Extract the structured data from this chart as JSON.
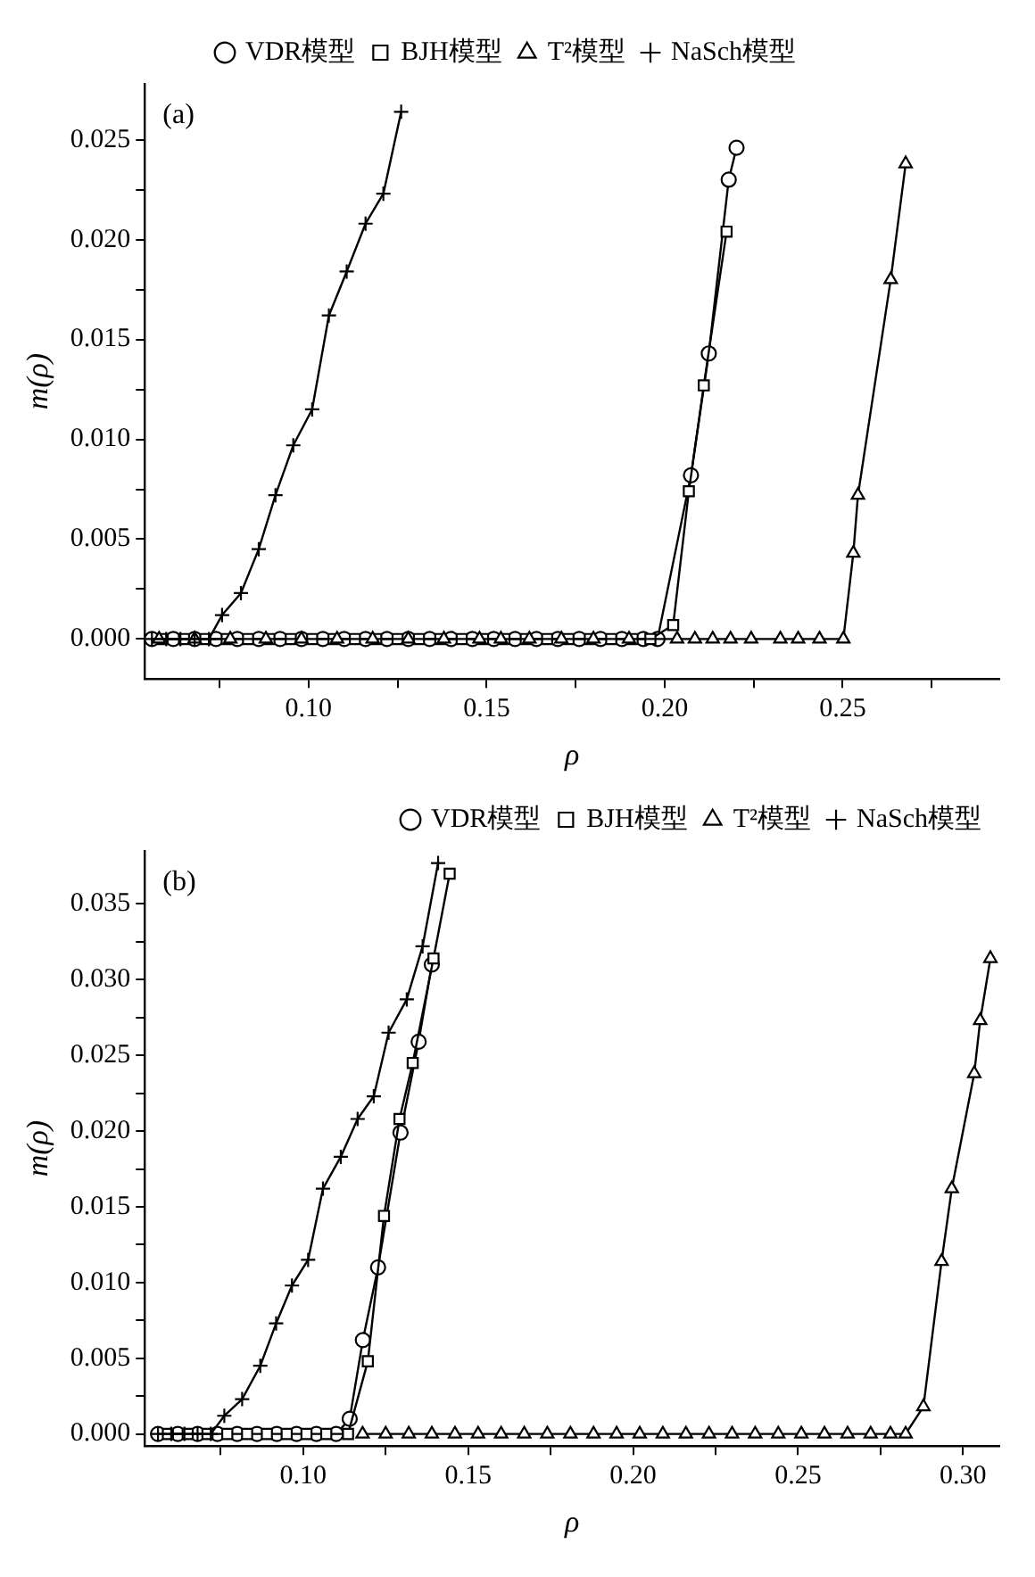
{
  "chart_data": [
    {
      "type": "line",
      "xlabel": "ρ",
      "ylabel": "m(ρ)",
      "annotations": [
        "(a)"
      ],
      "legend": "top",
      "xlim": [
        0.054,
        0.294
      ],
      "ylim": [
        -0.002,
        0.0278
      ],
      "xticks": [
        {
          "value": 0.075,
          "label": null
        },
        {
          "value": 0.1,
          "label": "0.10"
        },
        {
          "value": 0.125,
          "label": null
        },
        {
          "value": 0.15,
          "label": "0.15"
        },
        {
          "value": 0.175,
          "label": null
        },
        {
          "value": 0.2,
          "label": "0.20"
        },
        {
          "value": 0.225,
          "label": null
        },
        {
          "value": 0.25,
          "label": "0.25"
        },
        {
          "value": 0.275,
          "label": null
        }
      ],
      "yticks": [
        {
          "value": 0,
          "label": "0.000"
        },
        {
          "value": 0.0025,
          "label": null
        },
        {
          "value": 0.005,
          "label": "0.005"
        },
        {
          "value": 0.0075,
          "label": null
        },
        {
          "value": 0.01,
          "label": "0.010"
        },
        {
          "value": 0.0125,
          "label": null
        },
        {
          "value": 0.015,
          "label": "0.015"
        },
        {
          "value": 0.0175,
          "label": null
        },
        {
          "value": 0.02,
          "label": "0.020"
        },
        {
          "value": 0.0225,
          "label": null
        },
        {
          "value": 0.025,
          "label": "0.025"
        }
      ],
      "series": [
        {
          "name": "VDR模型",
          "color": "#000000",
          "marker": "circle",
          "x": [
            0.056,
            0.062,
            0.068,
            0.074,
            0.08,
            0.086,
            0.092,
            0.098,
            0.104,
            0.11,
            0.116,
            0.122,
            0.128,
            0.134,
            0.14,
            0.146,
            0.152,
            0.158,
            0.164,
            0.17,
            0.176,
            0.182,
            0.188,
            0.194,
            0.198,
            0.2074,
            0.2124,
            0.218,
            0.2202
          ],
          "values": [
            0,
            0,
            0,
            0,
            0,
            0,
            0,
            0,
            0,
            0,
            0,
            0,
            0,
            0,
            0,
            0,
            0,
            0,
            0,
            0,
            0,
            0,
            0,
            0,
            0,
            0.0082,
            0.0143,
            0.023,
            0.0246
          ]
        },
        {
          "name": "BJH模型",
          "color": "#000000",
          "marker": "square",
          "x": [
            0.059,
            0.065,
            0.071,
            0.077,
            0.083,
            0.089,
            0.095,
            0.101,
            0.107,
            0.113,
            0.119,
            0.125,
            0.131,
            0.137,
            0.143,
            0.149,
            0.155,
            0.161,
            0.167,
            0.173,
            0.179,
            0.185,
            0.191,
            0.196,
            0.2024,
            0.2068,
            0.211,
            0.2174
          ],
          "values": [
            0,
            0,
            0,
            0,
            0,
            0,
            0,
            0,
            0,
            0,
            0,
            0,
            0,
            0,
            0,
            0,
            0,
            0,
            0,
            0,
            0,
            0,
            0,
            0,
            0.0007,
            0.0074,
            0.0127,
            0.0204
          ]
        },
        {
          "name": "T²模型",
          "color": "#000000",
          "marker": "triangle",
          "x": [
            0.058,
            0.068,
            0.078,
            0.088,
            0.098,
            0.108,
            0.118,
            0.128,
            0.138,
            0.148,
            0.154,
            0.162,
            0.171,
            0.18,
            0.19,
            0.2035,
            0.2085,
            0.2135,
            0.2185,
            0.2243,
            0.2325,
            0.2375,
            0.2435,
            0.2502,
            0.253,
            0.2543,
            0.2635,
            0.2677
          ],
          "values": [
            0,
            0,
            0,
            0,
            0,
            0,
            0,
            0,
            0,
            0,
            0,
            0,
            0,
            0,
            0,
            0,
            0,
            0,
            0,
            0,
            0,
            0,
            0,
            0,
            0.0043,
            0.0072,
            0.018,
            0.0238
          ]
        },
        {
          "name": "NaSch模型",
          "color": "#000000",
          "marker": "cross",
          "x": [
            0.056,
            0.06,
            0.064,
            0.068,
            0.072,
            0.0757,
            0.081,
            0.086,
            0.0907,
            0.0957,
            0.101,
            0.1057,
            0.1107,
            0.116,
            0.121,
            0.126
          ],
          "values": [
            0,
            0,
            0,
            0,
            0,
            0.0012,
            0.0023,
            0.0045,
            0.0072,
            0.0097,
            0.0115,
            0.0162,
            0.0184,
            0.0208,
            0.0223,
            0.0264
          ]
        }
      ]
    },
    {
      "type": "line",
      "xlabel": "ρ",
      "ylabel": "m(ρ)",
      "annotations": [
        "(b)"
      ],
      "legend": "top right",
      "xlim": [
        0.052,
        0.311
      ],
      "ylim": [
        -0.0008,
        0.0385
      ],
      "xticks": [
        {
          "value": 0.075,
          "label": null
        },
        {
          "value": 0.1,
          "label": "0.10"
        },
        {
          "value": 0.125,
          "label": null
        },
        {
          "value": 0.15,
          "label": "0.15"
        },
        {
          "value": 0.175,
          "label": null
        },
        {
          "value": 0.2,
          "label": "0.20"
        },
        {
          "value": 0.225,
          "label": null
        },
        {
          "value": 0.25,
          "label": "0.25"
        },
        {
          "value": 0.275,
          "label": null
        },
        {
          "value": 0.3,
          "label": "0.30"
        }
      ],
      "yticks": [
        {
          "value": 0,
          "label": "0.000"
        },
        {
          "value": 0.0025,
          "label": null
        },
        {
          "value": 0.005,
          "label": "0.005"
        },
        {
          "value": 0.0075,
          "label": null
        },
        {
          "value": 0.01,
          "label": "0.010"
        },
        {
          "value": 0.0125,
          "label": null
        },
        {
          "value": 0.015,
          "label": "0.015"
        },
        {
          "value": 0.0175,
          "label": null
        },
        {
          "value": 0.02,
          "label": "0.020"
        },
        {
          "value": 0.0225,
          "label": null
        },
        {
          "value": 0.025,
          "label": "0.025"
        },
        {
          "value": 0.0275,
          "label": null
        },
        {
          "value": 0.03,
          "label": "0.030"
        },
        {
          "value": 0.0325,
          "label": null
        },
        {
          "value": 0.035,
          "label": "0.035"
        }
      ],
      "series": [
        {
          "name": "VDR模型",
          "color": "#000000",
          "marker": "circle",
          "x": [
            0.056,
            0.062,
            0.068,
            0.074,
            0.08,
            0.086,
            0.092,
            0.098,
            0.104,
            0.11,
            0.1141,
            0.1181,
            0.1227,
            0.1295,
            0.135,
            0.139
          ],
          "values": [
            0,
            0,
            0,
            0,
            0,
            0,
            0,
            0,
            0,
            0,
            0.001,
            0.0062,
            0.011,
            0.0199,
            0.0259,
            0.031
          ]
        },
        {
          "name": "BJH模型",
          "color": "#000000",
          "marker": "square",
          "x": [
            0.059,
            0.065,
            0.071,
            0.077,
            0.083,
            0.089,
            0.095,
            0.101,
            0.107,
            0.1136,
            0.1196,
            0.1245,
            0.1292,
            0.1332,
            0.1395,
            0.1444
          ],
          "values": [
            0,
            0,
            0,
            0,
            0,
            0,
            0,
            0,
            0,
            0,
            0.0048,
            0.0144,
            0.0208,
            0.0245,
            0.0314,
            0.037
          ]
        },
        {
          "name": "T²模型",
          "color": "#000000",
          "marker": "triangle",
          "x": [
            0.118,
            0.125,
            0.132,
            0.139,
            0.146,
            0.153,
            0.16,
            0.167,
            0.174,
            0.181,
            0.188,
            0.195,
            0.202,
            0.209,
            0.216,
            0.223,
            0.23,
            0.237,
            0.244,
            0.251,
            0.258,
            0.265,
            0.272,
            0.278,
            0.2826,
            0.288,
            0.2935,
            0.2966,
            0.3034,
            0.3052,
            0.3083
          ],
          "values": [
            0,
            0,
            0,
            0,
            0,
            0,
            0,
            0,
            0,
            0,
            0,
            0,
            0,
            0,
            0,
            0,
            0,
            0,
            0,
            0,
            0,
            0,
            0,
            0,
            0,
            0.0018,
            0.0114,
            0.0162,
            0.0238,
            0.0273,
            0.0314
          ]
        },
        {
          "name": "NaSch模型",
          "color": "#000000",
          "marker": "cross",
          "x": [
            0.056,
            0.06,
            0.064,
            0.068,
            0.072,
            0.0761,
            0.0815,
            0.087,
            0.0918,
            0.0966,
            0.1015,
            0.106,
            0.1114,
            0.1165,
            0.1214,
            0.1259,
            0.1314,
            0.1362,
            0.1409
          ],
          "values": [
            0,
            0,
            0,
            0,
            0,
            0.0012,
            0.0023,
            0.0045,
            0.0073,
            0.0098,
            0.0115,
            0.0162,
            0.0183,
            0.0208,
            0.0223,
            0.0265,
            0.0287,
            0.0322,
            0.0377
          ]
        }
      ]
    }
  ]
}
